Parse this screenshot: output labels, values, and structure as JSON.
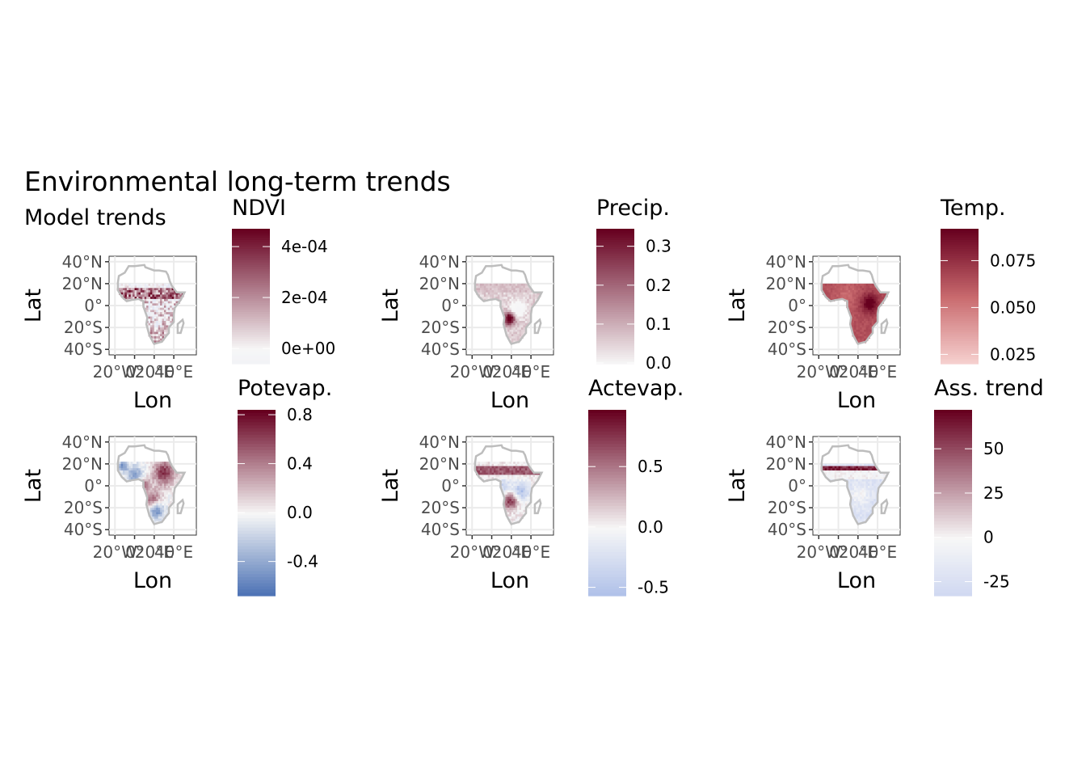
{
  "title": "Environmental long-term trends",
  "subtitle": "Model trends",
  "chart_data": [
    {
      "type": "heatmap",
      "panel": "ndvi",
      "legend_title": "NDVI",
      "xlabel": "Lon",
      "ylabel": "Lat",
      "x_ticks": [
        "20°W",
        "0°",
        "20°E",
        "40°E"
      ],
      "y_ticks": [
        "40°N",
        "20°N",
        "0°",
        "20°S",
        "40°S"
      ],
      "legend_ticks": [
        {
          "value": 0.0004,
          "label": "4e-04"
        },
        {
          "value": 0.0002,
          "label": "2e-04"
        },
        {
          "value": 0,
          "label": "0e+00"
        }
      ],
      "legend_range": [
        -6e-05,
        0.00047
      ],
      "colors": {
        "high": "#67001f",
        "mid": "#f7f7f7",
        "low": "#c6cff0"
      },
      "pattern": "noisy-sahel-band"
    },
    {
      "type": "heatmap",
      "panel": "precip",
      "legend_title": "Precip.",
      "xlabel": "Lon",
      "ylabel": "Lat",
      "x_ticks": [
        "20°W",
        "0°",
        "20°E",
        "40°E"
      ],
      "y_ticks": [
        "40°N",
        "20°N",
        "0°",
        "20°S",
        "40°S"
      ],
      "legend_ticks": [
        {
          "value": 0.3,
          "label": "0.3"
        },
        {
          "value": 0.2,
          "label": "0.2"
        },
        {
          "value": 0.1,
          "label": "0.1"
        },
        {
          "value": 0.0,
          "label": "0.0"
        }
      ],
      "legend_range": [
        -0.002,
        0.345
      ],
      "colors": {
        "high": "#67001f",
        "mid": "#f7f7f7",
        "low": "#f1f1f6"
      },
      "pattern": "southwest-hotspot"
    },
    {
      "type": "heatmap",
      "panel": "temp",
      "legend_title": "Temp.",
      "xlabel": "Lon",
      "ylabel": "Lat",
      "x_ticks": [
        "20°W",
        "0°",
        "20°E",
        "40°E"
      ],
      "y_ticks": [
        "40°N",
        "20°N",
        "0°",
        "20°S",
        "40°S"
      ],
      "legend_ticks": [
        {
          "value": 0.075,
          "label": "0.075"
        },
        {
          "value": 0.05,
          "label": "0.050"
        },
        {
          "value": 0.025,
          "label": "0.025"
        }
      ],
      "legend_range": [
        0.02,
        0.092
      ],
      "colors": {
        "high": "#67001f",
        "mid": "#c96a6e",
        "low": "#f7d3d1"
      },
      "pattern": "east-africa-hotspot"
    },
    {
      "type": "heatmap",
      "panel": "potevap",
      "legend_title": "Potevap.",
      "xlabel": "Lon",
      "ylabel": "Lat",
      "x_ticks": [
        "20°W",
        "0°",
        "20°E",
        "40°E"
      ],
      "y_ticks": [
        "40°N",
        "20°N",
        "0°",
        "20°S",
        "40°S"
      ],
      "legend_ticks": [
        {
          "value": 0.8,
          "label": "0.8"
        },
        {
          "value": 0.4,
          "label": "0.4"
        },
        {
          "value": 0.0,
          "label": "0.0"
        },
        {
          "value": -0.4,
          "label": "-0.4"
        }
      ],
      "legend_range": [
        -0.68,
        0.84
      ],
      "colors": {
        "high": "#67001f",
        "mid": "#f7f7f7",
        "low": "#1f4fa3"
      },
      "pattern": "mixed-blobs"
    },
    {
      "type": "heatmap",
      "panel": "actevap",
      "legend_title": "Actevap.",
      "xlabel": "Lon",
      "ylabel": "Lat",
      "x_ticks": [
        "20°W",
        "0°",
        "20°E",
        "40°E"
      ],
      "y_ticks": [
        "40°N",
        "20°N",
        "0°",
        "20°S",
        "40°S"
      ],
      "legend_ticks": [
        {
          "value": 0.5,
          "label": "0.5"
        },
        {
          "value": 0.0,
          "label": "0.0"
        },
        {
          "value": -0.5,
          "label": "-0.5"
        }
      ],
      "legend_range": [
        -0.57,
        0.97
      ],
      "colors": {
        "high": "#67001f",
        "mid": "#f7f7f7",
        "low": "#7a98de"
      },
      "pattern": "sahel-and-southwest"
    },
    {
      "type": "heatmap",
      "panel": "asstrend",
      "legend_title": "Ass. trend",
      "xlabel": "Lon",
      "ylabel": "Lat",
      "x_ticks": [
        "20°W",
        "0°",
        "20°E",
        "40°E"
      ],
      "y_ticks": [
        "40°N",
        "20°N",
        "0°",
        "20°S",
        "40°S"
      ],
      "legend_ticks": [
        {
          "value": 50,
          "label": "50"
        },
        {
          "value": 25,
          "label": "25"
        },
        {
          "value": 0,
          "label": "0"
        },
        {
          "value": -25,
          "label": "-25"
        }
      ],
      "legend_range": [
        -33,
        72
      ],
      "colors": {
        "high": "#67001f",
        "mid": "#f7f7f7",
        "low": "#9fb2ea"
      },
      "pattern": "northern-stripe"
    }
  ]
}
